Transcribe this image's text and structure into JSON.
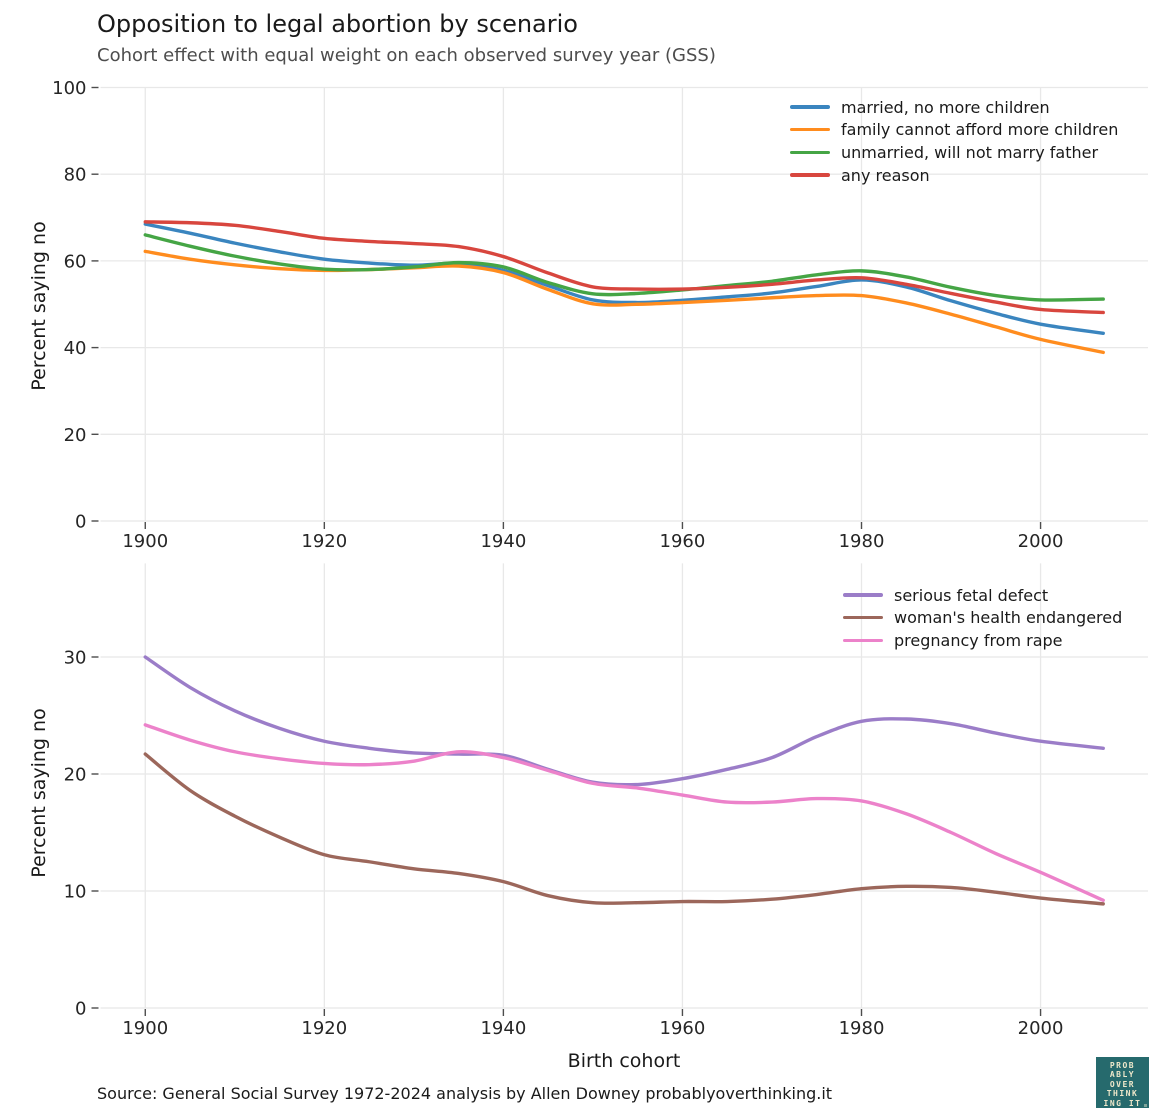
{
  "page": {
    "title": "Opposition to legal abortion by scenario",
    "subtitle": "Cohort effect with equal weight on each observed survey year (GSS)",
    "footer": "Source: General Social Survey 1972-2024 analysis by Allen Downey probablyoverthinking.it"
  },
  "logo": {
    "lines": [
      "PROB",
      "ABLY",
      "OVER",
      "THINK",
      "ING IT"
    ],
    "background": "#266a6d",
    "text_color": "#efe8cb"
  },
  "chart_data": [
    {
      "type": "line",
      "title": "",
      "xlabel": "",
      "ylabel": "Percent saying no",
      "grid": true,
      "legend_position": "upper right",
      "xlim": [
        1895,
        2012
      ],
      "ylim": [
        0,
        100
      ],
      "xticks": [
        1900,
        1920,
        1940,
        1960,
        1980,
        2000
      ],
      "yticks": [
        0,
        20,
        40,
        60,
        80,
        100
      ],
      "x": [
        1900,
        1905,
        1910,
        1915,
        1920,
        1925,
        1930,
        1935,
        1940,
        1945,
        1950,
        1955,
        1960,
        1965,
        1970,
        1975,
        1980,
        1985,
        1990,
        1995,
        2000,
        2007
      ],
      "series": [
        {
          "name": "married, no more children",
          "color": "#3a85bf",
          "values": [
            68.5,
            66.4,
            64.1,
            62.1,
            60.4,
            59.5,
            59.0,
            59.4,
            57.8,
            54.3,
            51.0,
            50.4,
            50.9,
            51.7,
            52.6,
            54.1,
            55.6,
            54.0,
            50.8,
            47.9,
            45.4,
            43.3
          ]
        },
        {
          "name": "family cannot afford more children",
          "color": "#ff8c1e",
          "values": [
            62.2,
            60.4,
            59.1,
            58.2,
            57.8,
            58.0,
            58.4,
            58.8,
            57.3,
            53.4,
            50.1,
            50.0,
            50.4,
            50.9,
            51.5,
            52.0,
            52.0,
            50.3,
            47.7,
            44.8,
            41.9,
            38.9
          ]
        },
        {
          "name": "unmarried, will not marry father",
          "color": "#45a545",
          "values": [
            66.0,
            63.4,
            61.1,
            59.3,
            58.1,
            58.0,
            58.6,
            59.6,
            58.6,
            55.0,
            52.4,
            52.5,
            53.3,
            54.3,
            55.3,
            56.8,
            57.7,
            56.3,
            53.9,
            52.0,
            51.0,
            51.2
          ]
        },
        {
          "name": "any reason",
          "color": "#d8463e",
          "values": [
            69.0,
            68.8,
            68.2,
            66.8,
            65.2,
            64.5,
            64.0,
            63.3,
            61.0,
            57.2,
            54.0,
            53.5,
            53.5,
            53.9,
            54.6,
            55.6,
            56.1,
            54.6,
            52.5,
            50.5,
            48.8,
            48.1
          ]
        }
      ]
    },
    {
      "type": "line",
      "title": "",
      "xlabel": "Birth cohort",
      "ylabel": "Percent saying no",
      "grid": true,
      "legend_position": "upper right",
      "xlim": [
        1895,
        2012
      ],
      "ylim": [
        0,
        38
      ],
      "xticks": [
        1900,
        1920,
        1940,
        1960,
        1980,
        2000
      ],
      "yticks": [
        0,
        10,
        20,
        30
      ],
      "x": [
        1900,
        1905,
        1910,
        1915,
        1920,
        1925,
        1930,
        1935,
        1940,
        1945,
        1950,
        1955,
        1960,
        1965,
        1970,
        1975,
        1980,
        1985,
        1990,
        1995,
        2000,
        2007
      ],
      "series": [
        {
          "name": "serious fetal defect",
          "color": "#9b7dc8",
          "values": [
            30.0,
            27.4,
            25.4,
            23.9,
            22.8,
            22.2,
            21.8,
            21.7,
            21.6,
            20.4,
            19.3,
            19.1,
            19.6,
            20.4,
            21.4,
            23.2,
            24.5,
            24.7,
            24.3,
            23.5,
            22.8,
            22.2
          ]
        },
        {
          "name": "woman's health endangered",
          "color": "#9c675b",
          "values": [
            21.7,
            18.6,
            16.4,
            14.6,
            13.1,
            12.5,
            11.9,
            11.5,
            10.8,
            9.6,
            9.0,
            9.0,
            9.1,
            9.1,
            9.3,
            9.7,
            10.2,
            10.4,
            10.3,
            9.9,
            9.4,
            8.9
          ]
        },
        {
          "name": "pregnancy from rape",
          "color": "#ec82ca",
          "values": [
            24.2,
            22.9,
            21.9,
            21.3,
            20.9,
            20.8,
            21.1,
            21.9,
            21.4,
            20.3,
            19.2,
            18.8,
            18.2,
            17.6,
            17.6,
            17.9,
            17.7,
            16.6,
            15.0,
            13.2,
            11.6,
            9.2
          ]
        }
      ]
    }
  ]
}
